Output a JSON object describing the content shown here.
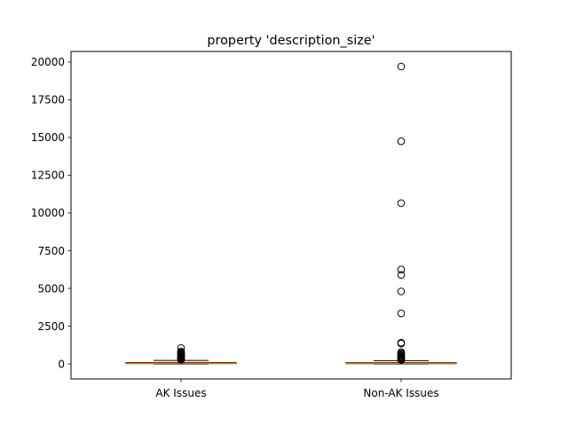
{
  "chart_data": {
    "type": "box",
    "title": "property 'description_size'",
    "xlabel": "",
    "ylabel": "",
    "categories": [
      "AK Issues",
      "Non-AK Issues"
    ],
    "ylim": [
      -1000,
      20700
    ],
    "yticks": [
      0,
      2500,
      5000,
      7500,
      10000,
      12500,
      15000,
      17500,
      20000
    ],
    "ytick_labels": [
      "0",
      "2500",
      "5000",
      "7500",
      "10000",
      "12500",
      "15000",
      "17500",
      "20000"
    ],
    "grid": false,
    "series": [
      {
        "whisker_low": 0,
        "q1": 20,
        "median": 45,
        "q3": 90,
        "whisker_high": 230,
        "outliers": [
          270,
          310,
          360,
          400,
          450,
          500,
          550,
          600,
          650,
          700,
          760,
          820,
          1050
        ]
      },
      {
        "whisker_low": 0,
        "q1": 15,
        "median": 40,
        "q3": 80,
        "whisker_high": 210,
        "outliers": [
          250,
          300,
          350,
          400,
          460,
          520,
          580,
          640,
          700,
          780,
          1350,
          1400,
          3350,
          4800,
          5900,
          6250,
          10650,
          14750,
          19700
        ]
      }
    ],
    "colors": {
      "box": "#000000",
      "median": "#ff7f0e",
      "outlier_edge": "#000000"
    }
  }
}
